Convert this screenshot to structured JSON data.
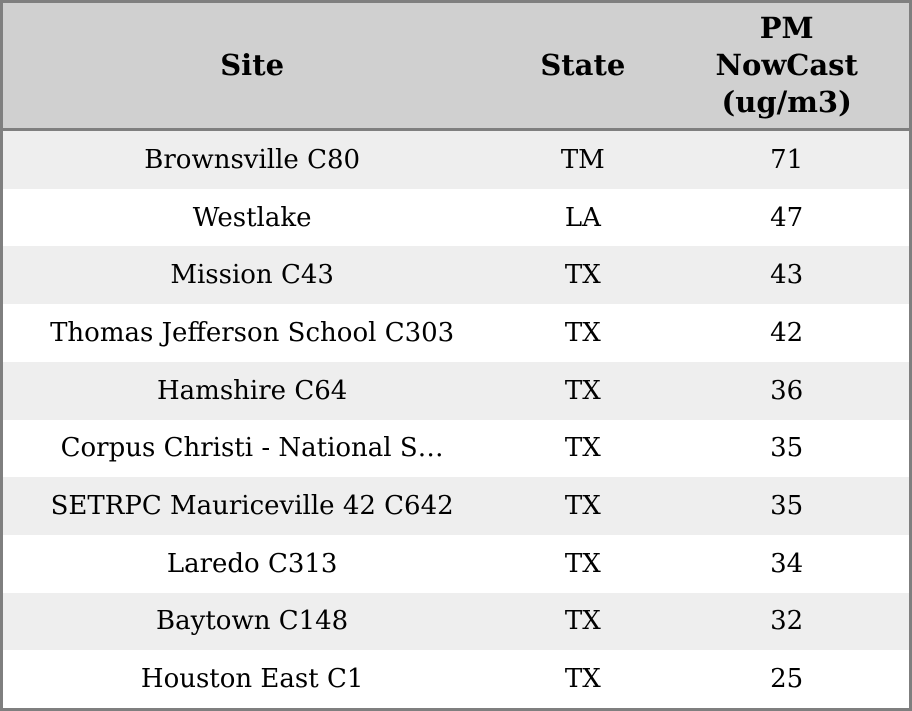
{
  "table": {
    "name": "pm-nowcast-site-table",
    "columns": [
      {
        "id": "site",
        "label": "Site"
      },
      {
        "id": "state",
        "label": "State"
      },
      {
        "id": "pm_nowcast",
        "label": "PM\nNowCast\n(ug/m3)"
      }
    ],
    "rows": [
      {
        "site": "Brownsville C80",
        "state": "TM",
        "pm_nowcast": "71"
      },
      {
        "site": "Westlake",
        "state": "LA",
        "pm_nowcast": "47"
      },
      {
        "site": "Mission C43",
        "state": "TX",
        "pm_nowcast": "43"
      },
      {
        "site": "Thomas Jefferson School C303",
        "state": "TX",
        "pm_nowcast": "42"
      },
      {
        "site": "Hamshire C64",
        "state": "TX",
        "pm_nowcast": "36"
      },
      {
        "site": "Corpus Christi - National S…",
        "state": "TX",
        "pm_nowcast": "35"
      },
      {
        "site": "SETRPC Mauriceville 42 C642",
        "state": "TX",
        "pm_nowcast": "35"
      },
      {
        "site": "Laredo C313",
        "state": "TX",
        "pm_nowcast": "34"
      },
      {
        "site": "Baytown C148",
        "state": "TX",
        "pm_nowcast": "32"
      },
      {
        "site": "Houston East C1",
        "state": "TX",
        "pm_nowcast": "25"
      }
    ]
  },
  "colors": {
    "border-color": "#7f7f7f",
    "header-bg": "#d0d0d0",
    "stripe-bg": "#eeeeee",
    "row-bg": "#ffffff",
    "text-color": "#000000"
  }
}
